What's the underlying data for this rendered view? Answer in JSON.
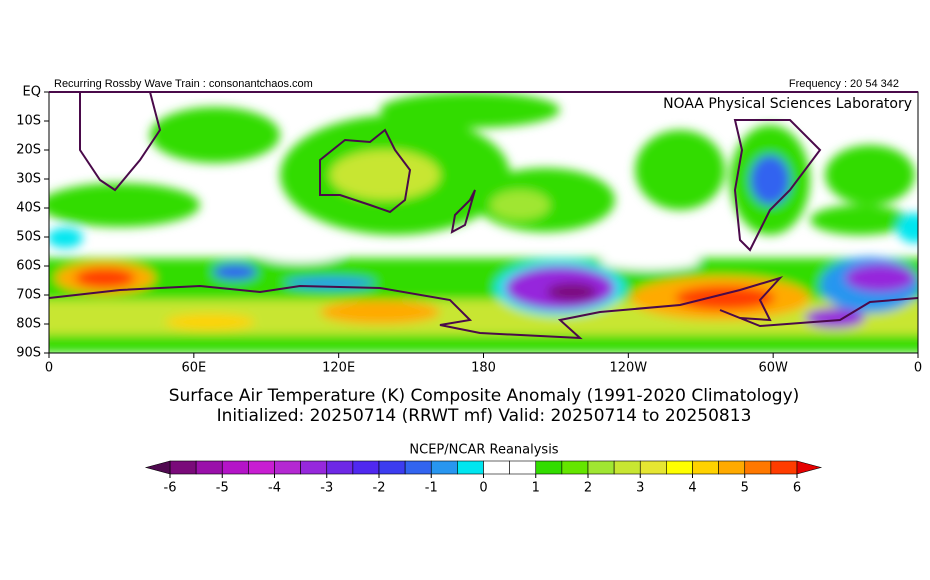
{
  "header": {
    "left": "Recurring Rossby Wave Train : consonantchaos.com",
    "right": "Frequency : 20 54 342",
    "lab": "NOAA Physical Sciences Laboratory"
  },
  "map": {
    "xlabels": [
      "0",
      "60E",
      "120E",
      "180",
      "120W",
      "60W",
      "0"
    ],
    "ylabels": [
      "EQ",
      "10S",
      "20S",
      "30S",
      "40S",
      "50S",
      "60S",
      "70S",
      "80S",
      "90S"
    ]
  },
  "title": [
    "Surface Air Temperature (K) Composite Anomaly (1991-2020 Climatology)",
    "Initialized: 20250714 (RRWT mf) Valid: 20250714 to 20250813"
  ],
  "colorbar": {
    "title": "NCEP/NCAR Reanalysis",
    "ticks": [
      -6,
      -5,
      -4,
      -3,
      -2,
      -1,
      0,
      1,
      2,
      3,
      4,
      5,
      6
    ],
    "under_color": "#500a50",
    "over_color": "#e60000",
    "colors": [
      "#7a0a7a",
      "#9a10aa",
      "#b414c8",
      "#c81ed2",
      "#b428d2",
      "#9628dc",
      "#6e28e6",
      "#5028f0",
      "#3c3cf0",
      "#3264f0",
      "#2896f0",
      "#00e6f0",
      "#ffffff",
      "#ffffff",
      "#32dc00",
      "#64e600",
      "#a0e632",
      "#c8e632",
      "#e6e632",
      "#ffff00",
      "#ffd200",
      "#ffaa00",
      "#ff7800",
      "#ff3c00"
    ]
  }
}
